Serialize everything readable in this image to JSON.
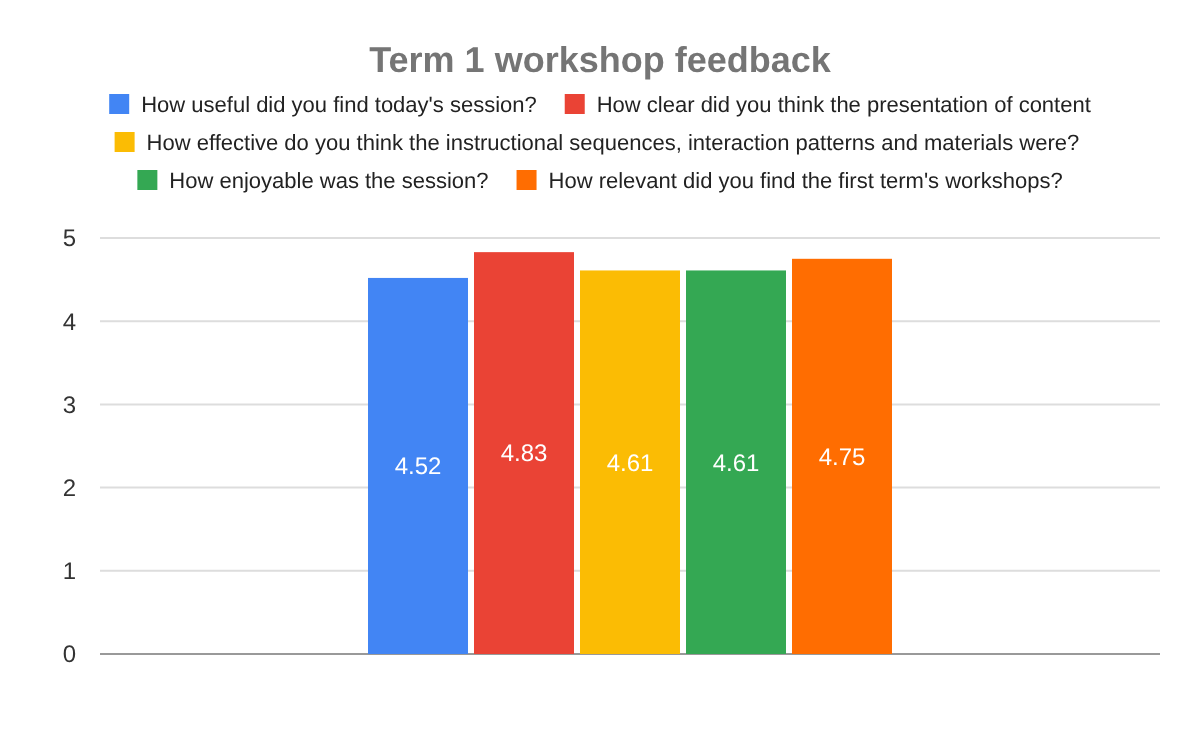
{
  "chart_data": {
    "type": "bar",
    "title": "Term 1 workshop feedback",
    "categories": [
      null
    ],
    "series": [
      {
        "name": "How useful did you find today's session?",
        "color": "#4285f4",
        "values": [
          4.52
        ]
      },
      {
        "name": "How clear did you think the presentation of content",
        "color": "#ea4335",
        "values": [
          4.83
        ]
      },
      {
        "name": "How effective do you think the instructional sequences,  interaction patterns and materials were?",
        "color": "#fbbc04",
        "values": [
          4.61
        ]
      },
      {
        "name": "How enjoyable was the session?",
        "color": "#34a853",
        "values": [
          4.61
        ]
      },
      {
        "name": "How relevant did you find the first term's workshops?",
        "color": "#ff6d01",
        "values": [
          4.75
        ]
      }
    ],
    "ylim": [
      0,
      5
    ],
    "yticks": [
      0,
      1,
      2,
      3,
      4,
      5
    ],
    "grid": "y",
    "legend": "top",
    "data_labels": true
  }
}
